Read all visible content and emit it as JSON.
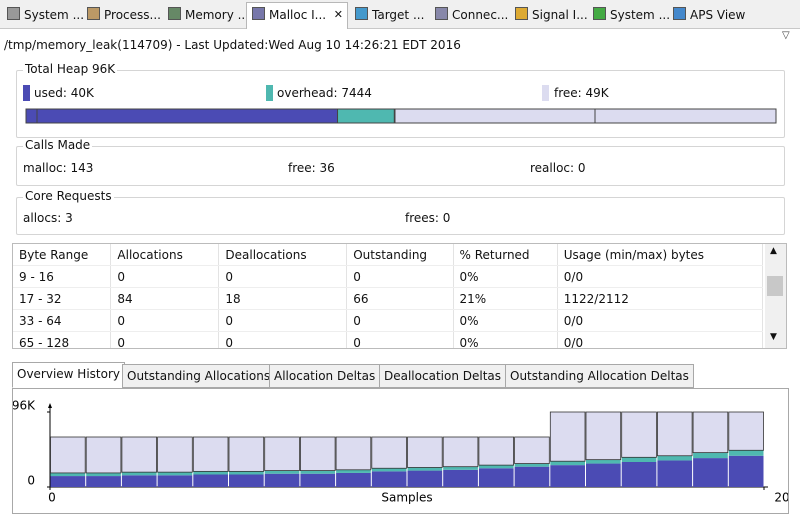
{
  "tabs": [
    "System ...",
    "Process...",
    "Memory ...",
    "Malloc I...",
    "Target ...",
    "Connec...",
    "Signal I...",
    "System ...",
    "APS View"
  ],
  "header": {
    "title": "/tmp/memory_leak(114709)  - Last Updated:Wed Aug 10 14:26:21 EDT 2016"
  },
  "total_heap": {
    "title": "Total Heap 96K",
    "used": "used: 40K",
    "overhead": "overhead: 7444",
    "free": "free: 49K",
    "bar": {
      "used": 40,
      "overhead": 7.3,
      "free": 49,
      "colors": [
        "#4b4bb4",
        "#4fb8b0",
        "#dcdcf0"
      ]
    }
  },
  "calls": {
    "title": "Calls Made",
    "malloc": "malloc: 143",
    "free": "free: 36",
    "realloc": "realloc: 0"
  },
  "core": {
    "title": "Core Requests",
    "allocs": "allocs: 3",
    "frees": "frees: 0"
  },
  "table": {
    "columns": [
      "Byte Range",
      "Allocations",
      "Deallocations",
      "Outstanding",
      "% Returned",
      "Usage (min/max) bytes"
    ],
    "rows": [
      [
        "9 - 16",
        "0",
        "0",
        "0",
        "0%",
        "0/0"
      ],
      [
        "17 - 32",
        "84",
        "18",
        "66",
        "21%",
        "1122/2112"
      ],
      [
        "33 - 64",
        "0",
        "0",
        "0",
        "0%",
        "0/0"
      ],
      [
        "65 - 128",
        "0",
        "0",
        "0",
        "0%",
        "0/0"
      ]
    ]
  },
  "subtabs": [
    "Overview History",
    "Outstanding Allocations",
    "Allocation Deltas",
    "Deallocation Deltas",
    "Outstanding Allocation Deltas"
  ],
  "chart_data": {
    "type": "stacked-bar",
    "xlabel": "Samples",
    "xlim": [
      0,
      20
    ],
    "xticks": [
      0,
      20
    ],
    "ylim": [
      0,
      96
    ],
    "yticks": [
      0,
      {
        "value": 96,
        "label": "96K"
      }
    ],
    "series": [
      {
        "name": "used",
        "color": "#4b4bb4",
        "values": [
          14,
          14,
          15,
          15,
          16,
          16,
          17,
          17,
          18,
          20,
          21,
          22,
          24,
          26,
          28,
          30,
          32,
          34,
          37,
          40
        ]
      },
      {
        "name": "overhead",
        "color": "#4fb8b0",
        "values": [
          4,
          4,
          4,
          4,
          4,
          4,
          4,
          4,
          4,
          4,
          4,
          4,
          4,
          4,
          5,
          5,
          6,
          6,
          7,
          7
        ]
      },
      {
        "name": "free",
        "color": "#dcdcf0",
        "values": [
          46,
          46,
          45,
          45,
          44,
          44,
          43,
          43,
          42,
          40,
          39,
          38,
          36,
          34,
          63,
          61,
          58,
          56,
          52,
          49
        ]
      }
    ]
  }
}
